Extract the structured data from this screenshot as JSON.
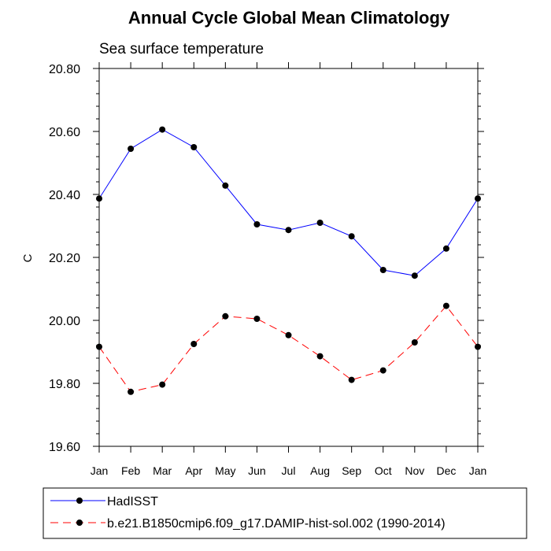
{
  "chart_data": {
    "type": "line",
    "title": "Annual Cycle Global Mean Climatology",
    "subtitle": "Sea surface temperature",
    "xlabel": "",
    "ylabel": "C",
    "categories": [
      "Jan",
      "Feb",
      "Mar",
      "Apr",
      "May",
      "Jun",
      "Jul",
      "Aug",
      "Sep",
      "Oct",
      "Nov",
      "Dec",
      "Jan"
    ],
    "yticks": [
      "19.60",
      "19.80",
      "20.00",
      "20.20",
      "20.40",
      "20.60",
      "20.80"
    ],
    "ylim": [
      19.6,
      20.8
    ],
    "grid": false,
    "legend_position": "bottom",
    "series": [
      {
        "name": "HadISST",
        "color": "#0000ff",
        "dash": "solid",
        "values": [
          20.387,
          20.545,
          20.606,
          20.55,
          20.428,
          20.305,
          20.287,
          20.31,
          20.267,
          20.16,
          20.142,
          20.228,
          20.387
        ]
      },
      {
        "name": "b.e21.B1850cmip6.f09_g17.DAMIP-hist-sol.002 (1990-2014)",
        "color": "#ff0000",
        "dash": "dashed",
        "values": [
          19.916,
          19.773,
          19.796,
          19.925,
          20.013,
          20.005,
          19.953,
          19.886,
          19.811,
          19.841,
          19.93,
          20.046,
          19.916
        ]
      }
    ]
  }
}
